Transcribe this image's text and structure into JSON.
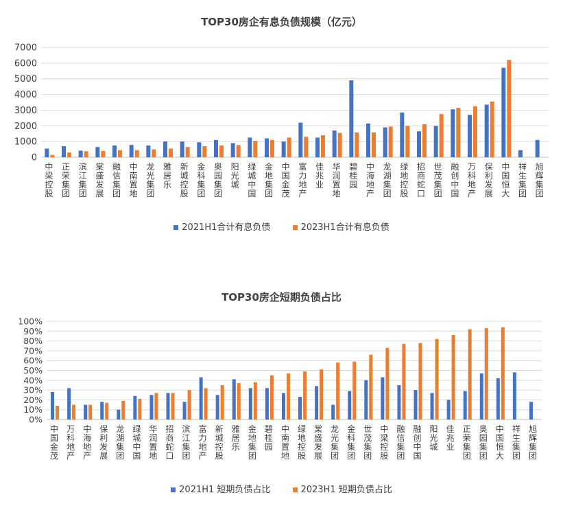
{
  "colors": {
    "s1": "#4472C4",
    "s2": "#ED7D31",
    "grid": "#d9d9d9",
    "axis": "#bfbfbf"
  },
  "chart_data": [
    {
      "type": "bar",
      "title": "TOP30房企有息负债规模（亿元）",
      "ylim": [
        0,
        7000
      ],
      "yticks": [
        "0",
        "1000",
        "2000",
        "3000",
        "4000",
        "5000",
        "6000",
        "7000"
      ],
      "grid": true,
      "legend_position": "bottom",
      "categories": [
        "中梁控股",
        "正荣集团",
        "滨江集团",
        "棠盛发展",
        "融信集团",
        "中南置地",
        "龙光集团",
        "雅居乐",
        "新城控股",
        "金科集团",
        "奥园集团",
        "阳光城",
        "绿城中国",
        "金地集团",
        "中国金茂",
        "富力地产",
        "佳兆业",
        "华润置地",
        "碧桂园",
        "中海地产",
        "龙湖集团",
        "绿地控股",
        "招商蛇口",
        "世茂集团",
        "融创中国",
        "万科地产",
        "保利发展",
        "中国恒大",
        "祥生集团",
        "旭辉集团"
      ],
      "series": [
        {
          "name": "2021H1合计有息负债",
          "values": [
            550,
            700,
            420,
            650,
            750,
            780,
            750,
            1000,
            1000,
            950,
            1100,
            900,
            1250,
            1200,
            1000,
            2200,
            1250,
            1700,
            4900,
            2150,
            1900,
            2850,
            1650,
            2000,
            3050,
            2700,
            3350,
            5700,
            450,
            1100
          ]
        },
        {
          "name": "2023H1合计有息负债",
          "values": [
            150,
            300,
            380,
            400,
            450,
            450,
            500,
            550,
            650,
            700,
            750,
            780,
            1050,
            1100,
            1250,
            1300,
            1400,
            1550,
            1580,
            1580,
            1950,
            2000,
            2100,
            2750,
            3150,
            3250,
            3550,
            6200,
            0,
            0
          ]
        }
      ]
    },
    {
      "type": "bar",
      "title": "TOP30房企短期负债占比",
      "ylim": [
        0,
        100
      ],
      "yticks": [
        "0%",
        "10%",
        "20%",
        "30%",
        "40%",
        "50%",
        "60%",
        "70%",
        "80%",
        "90%",
        "100%"
      ],
      "grid": true,
      "legend_position": "bottom",
      "categories": [
        "中国金茂",
        "万科地产",
        "中海地产",
        "保利发展",
        "龙湖集团",
        "绿城中国",
        "华润置地",
        "招商蛇口",
        "滨江集团",
        "富力地产",
        "新城控股",
        "雅居乐",
        "金地集团",
        "碧桂园",
        "中南置地",
        "绿地控股",
        "棠盛发展",
        "龙光集团",
        "金科集团",
        "世茂集团",
        "中梁控股",
        "融信集团",
        "融创中国",
        "阳光城",
        "佳兆业",
        "正荣集团",
        "奥园集团",
        "中国恒大",
        "祥生集团",
        "旭辉集团"
      ],
      "series": [
        {
          "name": "2021H1 短期负债占比",
          "values": [
            28,
            32,
            15,
            18,
            10,
            24,
            25,
            27,
            18,
            43,
            25,
            41,
            32,
            32,
            27,
            23,
            34,
            15,
            29,
            40,
            43,
            35,
            30,
            27,
            20,
            29,
            47,
            42,
            48,
            18
          ]
        },
        {
          "name": "2023H1 短期负债占比",
          "values": [
            14,
            15,
            15,
            17,
            19,
            21,
            27,
            27,
            30,
            32,
            35,
            37,
            38,
            45,
            47,
            49,
            51,
            58,
            59,
            66,
            73,
            77,
            78,
            82,
            86,
            92,
            93,
            94,
            0,
            0
          ]
        }
      ]
    }
  ]
}
